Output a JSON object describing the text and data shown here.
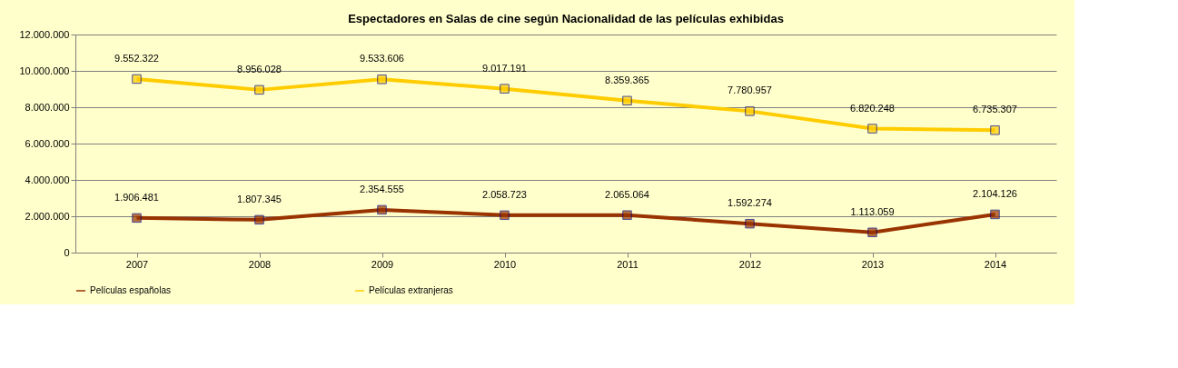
{
  "chart_data": {
    "type": "line",
    "title": "Espectadores en Salas de cine según Nacionalidad de las películas exhibidas",
    "categories": [
      "2007",
      "2008",
      "2009",
      "2010",
      "2011",
      "2012",
      "2013",
      "2014"
    ],
    "series": [
      {
        "name": "Películas españolas",
        "color": "#993300",
        "values": [
          1906481,
          1807345,
          2354555,
          2058723,
          2065064,
          1592274,
          1113059,
          2104126
        ],
        "value_labels": [
          "1.906.481",
          "1.807.345",
          "2.354.555",
          "2.058.723",
          "2.065.064",
          "1.592.274",
          "1.113.059",
          "2.104.126"
        ]
      },
      {
        "name": "Películas extranjeras",
        "color": "#ffcc00",
        "values": [
          9552322,
          8956028,
          9533606,
          9017191,
          8359365,
          7780957,
          6820248,
          6735307
        ],
        "value_labels": [
          "9.552.322",
          "8.956.028",
          "9.533.606",
          "9.017.191",
          "8.359.365",
          "7.780.957",
          "6.820.248",
          "6.735.307"
        ]
      }
    ],
    "ylim": [
      0,
      12000000
    ],
    "yticks": [
      0,
      {
        "value": 2000000,
        "label": "2.000.000"
      },
      {
        "value": 4000000,
        "label": "4.000.000"
      },
      {
        "value": 6000000,
        "label": "6.000.000"
      },
      {
        "value": 8000000,
        "label": "8.000.000"
      },
      {
        "value": 10000000,
        "label": "10.000.000"
      },
      {
        "value": 12000000,
        "label": "12.000.000"
      }
    ],
    "grid": "y",
    "legend": "bottom",
    "marker": "square",
    "line_style": "solid"
  }
}
